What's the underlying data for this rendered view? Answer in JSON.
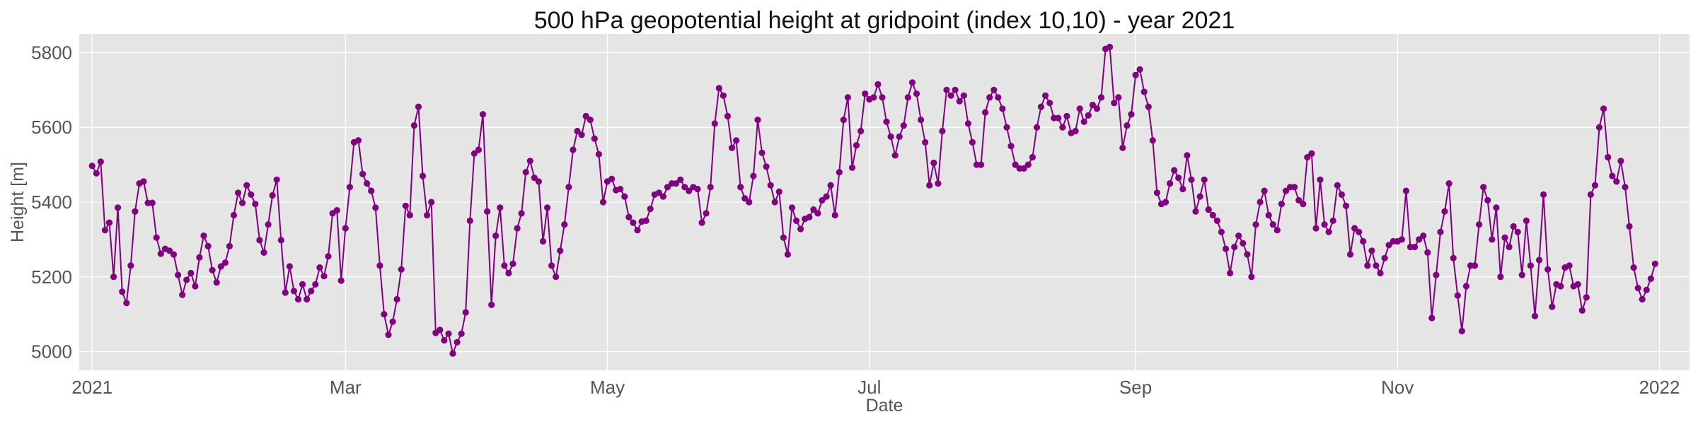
{
  "chart_data": {
    "type": "line",
    "title": "500 hPa geopotential height at gridpoint (index 10,10) - year 2021",
    "xlabel": "Date",
    "ylabel": "Height [m]",
    "xlim": [
      "2020-12-29",
      "2022-01-08"
    ],
    "ylim": [
      4950,
      5850
    ],
    "x_ticks": [
      {
        "date": "2021-01-01",
        "label": "2021"
      },
      {
        "date": "2021-03-01",
        "label": "Mar"
      },
      {
        "date": "2021-05-01",
        "label": "May"
      },
      {
        "date": "2021-07-01",
        "label": "Jul"
      },
      {
        "date": "2021-09-01",
        "label": "Sep"
      },
      {
        "date": "2021-11-01",
        "label": "Nov"
      },
      {
        "date": "2022-01-01",
        "label": "2022"
      }
    ],
    "y_ticks": [
      5000,
      5200,
      5400,
      5600,
      5800
    ],
    "grid": true,
    "colors": {
      "series": "#800080",
      "plot_bg": "#e5e5e5",
      "grid": "#ffffff"
    },
    "start_date": "2021-01-01",
    "series": [
      {
        "values": [
          5497,
          5477,
          5508,
          5325,
          5345,
          5200,
          5385,
          5160,
          5130,
          5230,
          5375,
          5450,
          5455,
          5398,
          5398,
          5305,
          5262,
          5275,
          5270,
          5260,
          5205,
          5152,
          5192,
          5210,
          5175,
          5252,
          5310,
          5282,
          5218,
          5185,
          5228,
          5238,
          5282,
          5365,
          5425,
          5398,
          5445,
          5420,
          5395,
          5298,
          5265,
          5340,
          5418,
          5460,
          5298,
          5158,
          5228,
          5162,
          5140,
          5180,
          5140,
          5162,
          5180,
          5225,
          5202,
          5255,
          5370,
          5378,
          5190,
          5330,
          5440,
          5560,
          5565,
          5475,
          5450,
          5430,
          5385,
          5230,
          5100,
          5045,
          5080,
          5140,
          5220,
          5390,
          5365,
          5605,
          5655,
          5470,
          5365,
          5400,
          5050,
          5058,
          5030,
          5048,
          4995,
          5025,
          5048,
          5105,
          5350,
          5530,
          5540,
          5635,
          5375,
          5125,
          5310,
          5385,
          5230,
          5210,
          5235,
          5330,
          5370,
          5480,
          5510,
          5465,
          5455,
          5295,
          5385,
          5230,
          5200,
          5270,
          5340,
          5440,
          5540,
          5590,
          5580,
          5630,
          5620,
          5570,
          5528,
          5400,
          5455,
          5462,
          5432,
          5435,
          5415,
          5360,
          5345,
          5325,
          5348,
          5350,
          5382,
          5420,
          5425,
          5415,
          5440,
          5450,
          5450,
          5460,
          5440,
          5430,
          5440,
          5435,
          5345,
          5370,
          5440,
          5610,
          5705,
          5685,
          5630,
          5545,
          5565,
          5440,
          5410,
          5400,
          5470,
          5620,
          5532,
          5495,
          5445,
          5400,
          5428,
          5305,
          5260,
          5385,
          5350,
          5328,
          5355,
          5360,
          5380,
          5370,
          5405,
          5415,
          5445,
          5365,
          5480,
          5620,
          5680,
          5492,
          5552,
          5590,
          5690,
          5675,
          5680,
          5715,
          5680,
          5615,
          5575,
          5525,
          5575,
          5605,
          5680,
          5720,
          5690,
          5620,
          5560,
          5445,
          5505,
          5450,
          5590,
          5700,
          5685,
          5700,
          5670,
          5685,
          5610,
          5560,
          5500,
          5500,
          5640,
          5680,
          5700,
          5680,
          5650,
          5600,
          5550,
          5500,
          5490,
          5490,
          5500,
          5520,
          5600,
          5655,
          5685,
          5665,
          5625,
          5625,
          5600,
          5630,
          5585,
          5590,
          5650,
          5615,
          5632,
          5660,
          5650,
          5680,
          5810,
          5815,
          5665,
          5680,
          5545,
          5605,
          5635,
          5740,
          5755,
          5695,
          5655,
          5565,
          5425,
          5395,
          5400,
          5450,
          5485,
          5465,
          5435,
          5525,
          5460,
          5375,
          5415,
          5460,
          5380,
          5365,
          5350,
          5320,
          5275,
          5210,
          5280,
          5310,
          5290,
          5260,
          5200,
          5340,
          5400,
          5430,
          5365,
          5340,
          5325,
          5395,
          5430,
          5440,
          5440,
          5405,
          5395,
          5520,
          5530,
          5330,
          5460,
          5340,
          5320,
          5350,
          5445,
          5420,
          5390,
          5260,
          5330,
          5320,
          5295,
          5230,
          5270,
          5230,
          5210,
          5250,
          5285,
          5295,
          5295,
          5300,
          5430,
          5280,
          5280,
          5300,
          5310,
          5265,
          5090,
          5205,
          5320,
          5375,
          5450,
          5250,
          5150,
          5055,
          5175,
          5230,
          5230,
          5340,
          5440,
          5405,
          5300,
          5385,
          5200,
          5305,
          5280,
          5335,
          5320,
          5205,
          5350,
          5230,
          5095,
          5245,
          5420,
          5220,
          5120,
          5180,
          5175,
          5225,
          5230,
          5175,
          5180,
          5110,
          5145,
          5420,
          5445,
          5600,
          5650,
          5520,
          5470,
          5455,
          5510,
          5440,
          5335,
          5225,
          5170,
          5140,
          5165,
          5195,
          5235
        ]
      }
    ]
  }
}
